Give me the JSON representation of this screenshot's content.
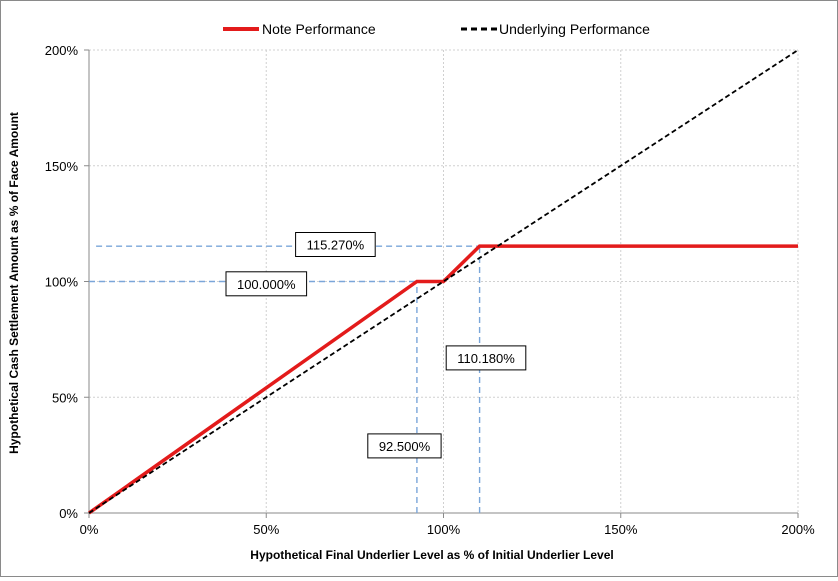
{
  "chart_data": {
    "type": "line",
    "title": "",
    "xlabel": "Hypothetical Final Underlier Level as % of Initial Underlier Level",
    "ylabel": "Hypothetical Cash Settlement Amount as % of Face Amount",
    "xlim": [
      0,
      200
    ],
    "ylim": [
      0,
      200
    ],
    "x_ticks": [
      0,
      50,
      100,
      150,
      200
    ],
    "y_ticks": [
      0,
      50,
      100,
      150,
      200
    ],
    "x_tick_labels": [
      "0%",
      "50%",
      "100%",
      "150%",
      "200%"
    ],
    "y_tick_labels": [
      "0%",
      "50%",
      "100%",
      "150%",
      "200%"
    ],
    "grid": true,
    "legend_position": "top-center",
    "series": [
      {
        "name": "Note Performance",
        "color": "#e31b1b",
        "style": "solid",
        "points": [
          [
            0,
            0
          ],
          [
            92.5,
            100
          ],
          [
            100,
            100
          ],
          [
            110.18,
            115.27
          ],
          [
            200,
            115.27
          ]
        ]
      },
      {
        "name": "Underlying Performance",
        "color": "#000000",
        "style": "dashed",
        "points": [
          [
            0,
            0
          ],
          [
            200,
            200
          ]
        ]
      }
    ],
    "reference_lines": [
      {
        "kind": "horizontal",
        "y": 115.27,
        "x_from": 2,
        "x_to": 110.18,
        "color": "#7aa6d9"
      },
      {
        "kind": "horizontal",
        "y": 100,
        "x_from": 0,
        "x_to": 92.5,
        "color": "#7aa6d9"
      },
      {
        "kind": "vertical",
        "x": 92.5,
        "y_from": 0,
        "y_to": 100,
        "color": "#7aa6d9"
      },
      {
        "kind": "vertical",
        "x": 110.18,
        "y_from": 0,
        "y_to": 115.27,
        "color": "#7aa6d9"
      }
    ],
    "annotations": [
      {
        "text": "115.270%",
        "x": 69.5,
        "y": 116
      },
      {
        "text": "100.000%",
        "x": 50,
        "y": 99
      },
      {
        "text": "110.180%",
        "x": 112,
        "y": 67
      },
      {
        "text": "92.500%",
        "x": 89,
        "y": 29
      }
    ]
  }
}
